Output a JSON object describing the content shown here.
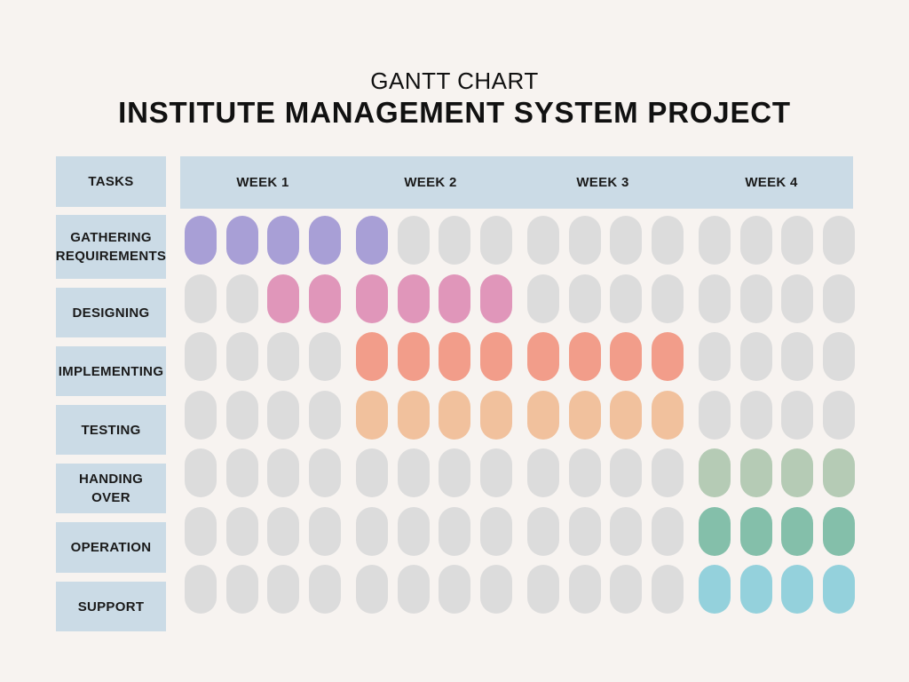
{
  "header": {
    "subtitle": "GANTT CHART",
    "title": "INSTITUTE MANAGEMENT SYSTEM PROJECT"
  },
  "colors": {
    "background": "#f7f3f0",
    "header_fill": "#cbdbe6",
    "empty_slot": "#dcdcdc"
  },
  "chart_data": {
    "type": "gantt",
    "title": "INSTITUTE MANAGEMENT SYSTEM PROJECT",
    "subtitle": "GANTT CHART",
    "task_header": "TASKS",
    "weeks": [
      "WEEK 1",
      "WEEK 2",
      "WEEK 3",
      "WEEK 4"
    ],
    "slots_per_week": 4,
    "total_slots": 16,
    "tasks": [
      {
        "name": "GATHERING REQUIREMENTS",
        "start_slot": 1,
        "end_slot": 5,
        "color": "#a89fd6"
      },
      {
        "name": "DESIGNING",
        "start_slot": 3,
        "end_slot": 8,
        "color": "#e096ba"
      },
      {
        "name": "IMPLEMENTING",
        "start_slot": 5,
        "end_slot": 12,
        "color": "#f29d8a"
      },
      {
        "name": "TESTING",
        "start_slot": 5,
        "end_slot": 12,
        "color": "#f1c19d"
      },
      {
        "name": "HANDING OVER",
        "start_slot": 13,
        "end_slot": 16,
        "color": "#b5cbb5"
      },
      {
        "name": "OPERATION",
        "start_slot": 13,
        "end_slot": 16,
        "color": "#84bfaa"
      },
      {
        "name": "SUPPORT",
        "start_slot": 13,
        "end_slot": 16,
        "color": "#94d1dc"
      }
    ]
  }
}
